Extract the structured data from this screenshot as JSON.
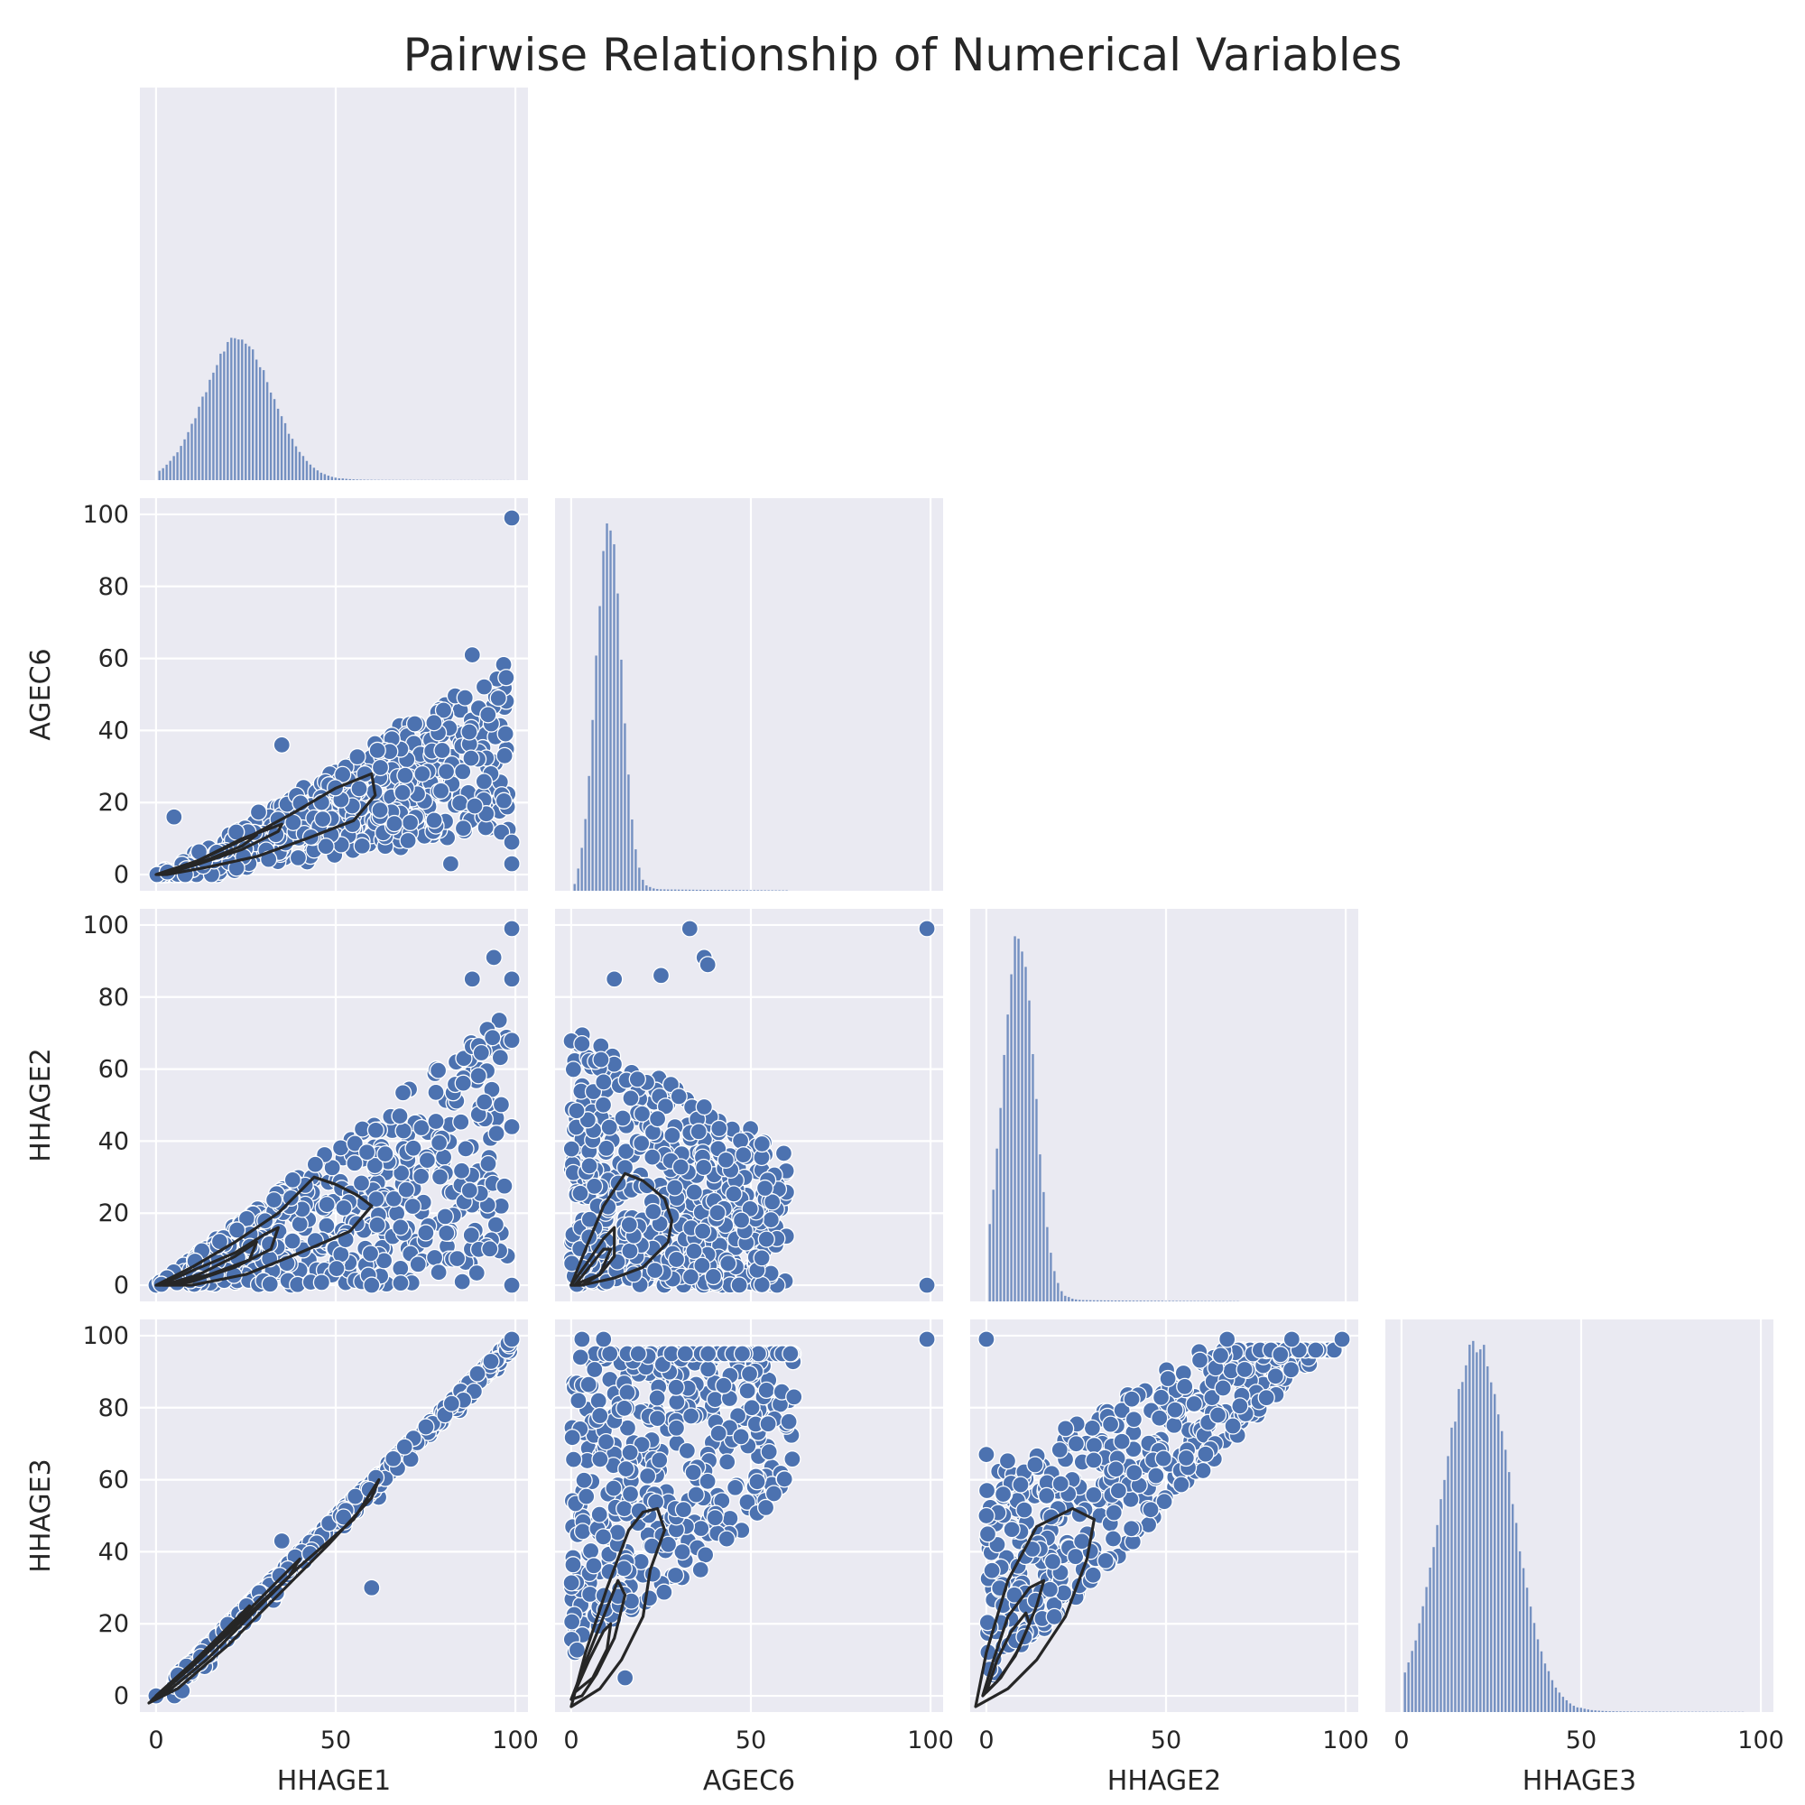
{
  "chart_data": {
    "type": "scatter",
    "title": "Pairwise Relationship of Numerical Variables",
    "variables": [
      "HHAGE1",
      "AGEC6",
      "HHAGE2",
      "HHAGE3"
    ],
    "layout": "corner pairplot (lower triangle scatter + KDE contours, diagonal histograms)",
    "axis_range": [
      0,
      100
    ],
    "ticks": [
      0,
      50,
      100
    ],
    "y_ticks": [
      0,
      20,
      40,
      60,
      80,
      100
    ],
    "grid": true,
    "diagonal_histograms": {
      "HHAGE1": {
        "mean": 23,
        "sd": 9.5,
        "tail_max": 98
      },
      "AGEC6": {
        "mean": 10.5,
        "sd": 3.6,
        "tail_max": 60
      },
      "HHAGE2": {
        "mean": 9,
        "sd": 4.5,
        "tail_max": 70
      },
      "HHAGE3": {
        "mean": 21,
        "sd": 9.5,
        "tail_max": 95
      }
    },
    "pairs": [
      {
        "x": "HHAGE1",
        "y": "AGEC6",
        "outliers": [
          [
            99,
            99
          ],
          [
            99,
            9
          ],
          [
            99,
            3
          ],
          [
            82,
            3
          ],
          [
            5,
            16
          ],
          [
            35,
            36
          ],
          [
            88,
            61
          ],
          [
            97,
            33
          ]
        ],
        "kde_levels": [
          [
            [
              0,
              0
            ],
            [
              12,
              4
            ],
            [
              25,
              10
            ],
            [
              38,
              17
            ],
            [
              50,
              24
            ],
            [
              60,
              28
            ],
            [
              61,
              22
            ],
            [
              55,
              15
            ],
            [
              42,
              10
            ],
            [
              28,
              5
            ],
            [
              14,
              2
            ],
            [
              3,
              0
            ]
          ],
          [
            [
              1,
              0
            ],
            [
              12,
              4
            ],
            [
              24,
              10
            ],
            [
              35,
              14
            ],
            [
              34,
              12
            ],
            [
              24,
              7
            ],
            [
              12,
              3
            ],
            [
              2,
              0
            ]
          ],
          [
            [
              2,
              0
            ],
            [
              12,
              4
            ],
            [
              22,
              9
            ],
            [
              28,
              11
            ],
            [
              24,
              8
            ],
            [
              14,
              4
            ],
            [
              4,
              1
            ]
          ]
        ]
      },
      {
        "x": "AGEC6",
        "y": "HHAGE2",
        "outliers": [
          [
            99,
            99
          ],
          [
            99,
            0
          ],
          [
            33,
            99
          ],
          [
            37,
            91
          ],
          [
            38,
            89
          ],
          [
            12,
            85
          ],
          [
            25,
            86
          ],
          [
            3,
            67
          ]
        ],
        "kde_levels": [
          [
            [
              0,
              0
            ],
            [
              4,
              10
            ],
            [
              9,
              22
            ],
            [
              15,
              31
            ],
            [
              20,
              29
            ],
            [
              26,
              24
            ],
            [
              28,
              18
            ],
            [
              27,
              12
            ],
            [
              20,
              5
            ],
            [
              12,
              2
            ],
            [
              3,
              0
            ]
          ],
          [
            [
              0,
              0
            ],
            [
              5,
              7
            ],
            [
              9,
              13
            ],
            [
              12,
              16
            ],
            [
              12,
              8
            ],
            [
              8,
              3
            ],
            [
              3,
              0
            ]
          ],
          [
            [
              1,
              0
            ],
            [
              5,
              5
            ],
            [
              9,
              10
            ],
            [
              11,
              10
            ],
            [
              8,
              3
            ],
            [
              3,
              1
            ]
          ]
        ]
      },
      {
        "x": "HHAGE1",
        "y": "HHAGE2",
        "outliers": [
          [
            99,
            99
          ],
          [
            99,
            85
          ],
          [
            99,
            68
          ],
          [
            99,
            44
          ],
          [
            99,
            0
          ],
          [
            60,
            0
          ],
          [
            88,
            85
          ],
          [
            94,
            91
          ]
        ],
        "kde_levels": [
          [
            [
              0,
              0
            ],
            [
              10,
              5
            ],
            [
              22,
              12
            ],
            [
              34,
              20
            ],
            [
              44,
              30
            ],
            [
              50,
              28
            ],
            [
              56,
              25
            ],
            [
              60,
              22
            ],
            [
              54,
              15
            ],
            [
              40,
              9
            ],
            [
              25,
              3
            ],
            [
              10,
              0
            ]
          ],
          [
            [
              1,
              0
            ],
            [
              10,
              4
            ],
            [
              22,
              9
            ],
            [
              30,
              14
            ],
            [
              34,
              16
            ],
            [
              32,
              10
            ],
            [
              22,
              5
            ],
            [
              10,
              1
            ]
          ],
          [
            [
              2,
              0
            ],
            [
              12,
              3
            ],
            [
              22,
              8
            ],
            [
              28,
              12
            ],
            [
              26,
              7
            ],
            [
              15,
              3
            ],
            [
              4,
              0
            ]
          ]
        ]
      },
      {
        "x": "HHAGE1",
        "y": "HHAGE3",
        "outliers": [
          [
            99,
            99
          ],
          [
            60,
            30
          ],
          [
            35,
            43
          ],
          [
            0,
            0
          ]
        ],
        "kde_levels": [
          [
            [
              -2,
              -2
            ],
            [
              10,
              8
            ],
            [
              25,
              22
            ],
            [
              40,
              36
            ],
            [
              55,
              49
            ],
            [
              62,
              60
            ],
            [
              60,
              55
            ],
            [
              48,
              42
            ],
            [
              34,
              28
            ],
            [
              20,
              14
            ],
            [
              6,
              2
            ]
          ],
          [
            [
              -1,
              -1
            ],
            [
              10,
              9
            ],
            [
              22,
              20
            ],
            [
              33,
              31
            ],
            [
              40,
              38
            ],
            [
              37,
              33
            ],
            [
              26,
              22
            ],
            [
              14,
              10
            ],
            [
              3,
              1
            ]
          ],
          [
            [
              0,
              0
            ],
            [
              10,
              9
            ],
            [
              20,
              19
            ],
            [
              26,
              25
            ],
            [
              22,
              19
            ],
            [
              12,
              10
            ],
            [
              2,
              1
            ]
          ]
        ]
      },
      {
        "x": "AGEC6",
        "y": "HHAGE3",
        "outliers": [
          [
            3,
            99
          ],
          [
            9,
            99
          ],
          [
            99,
            99
          ],
          [
            2,
            82
          ],
          [
            15,
            5
          ],
          [
            36,
            35
          ],
          [
            62,
            83
          ]
        ],
        "kde_levels": [
          [
            [
              0,
              -3
            ],
            [
              4,
              12
            ],
            [
              10,
              30
            ],
            [
              16,
              46
            ],
            [
              20,
              51
            ],
            [
              24,
              52
            ],
            [
              26,
              46
            ],
            [
              22,
              35
            ],
            [
              20,
              22
            ],
            [
              14,
              10
            ],
            [
              8,
              2
            ]
          ],
          [
            [
              0,
              -1
            ],
            [
              5,
              12
            ],
            [
              9,
              22
            ],
            [
              13,
              32
            ],
            [
              15,
              28
            ],
            [
              12,
              16
            ],
            [
              7,
              6
            ],
            [
              3,
              0
            ]
          ],
          [
            [
              1,
              1
            ],
            [
              5,
              10
            ],
            [
              9,
              18
            ],
            [
              11,
              20
            ],
            [
              10,
              13
            ],
            [
              6,
              5
            ]
          ]
        ]
      },
      {
        "x": "HHAGE2",
        "y": "HHAGE3",
        "outliers": [
          [
            0,
            99
          ],
          [
            0,
            67
          ],
          [
            0,
            50
          ],
          [
            99,
            99
          ],
          [
            67,
            99
          ],
          [
            87,
            96
          ],
          [
            85,
            99
          ]
        ],
        "kde_levels": [
          [
            [
              -3,
              -3
            ],
            [
              0,
              12
            ],
            [
              6,
              32
            ],
            [
              14,
              47
            ],
            [
              24,
              52
            ],
            [
              30,
              49
            ],
            [
              28,
              38
            ],
            [
              22,
              22
            ],
            [
              14,
              10
            ],
            [
              6,
              2
            ]
          ],
          [
            [
              -1,
              0
            ],
            [
              2,
              10
            ],
            [
              6,
              22
            ],
            [
              12,
              30
            ],
            [
              16,
              32
            ],
            [
              14,
              25
            ],
            [
              9,
              13
            ],
            [
              4,
              5
            ]
          ],
          [
            [
              0,
              1
            ],
            [
              3,
              10
            ],
            [
              7,
              18
            ],
            [
              11,
              23
            ],
            [
              12,
              20
            ],
            [
              8,
              11
            ],
            [
              3,
              4
            ]
          ]
        ]
      }
    ]
  }
}
